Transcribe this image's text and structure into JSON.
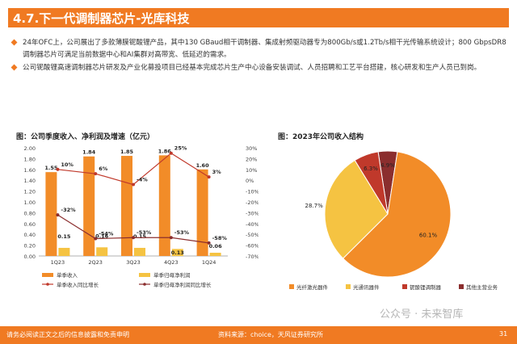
{
  "header": {
    "title": "4.7.下一代调制器芯片-光库科技"
  },
  "bullets": [
    "24年OFC上，公司展出了多款薄膜铌酸锂产品，其中130 GBaud相干调制器、集成射频驱动器专为800Gb/s或1.2Tb/s相干光传输系统设计；800 GbpsDR8调制器芯片可满足当前数据中心和AI集群对高带宽、低延迟的需求。",
    "公司铌酸锂高速调制器芯片研发及产业化募投项目已经基本完成芯片生产中心设备安装调试、人员招聘和工艺平台搭建，核心研发和生产人员已到岗。"
  ],
  "colors": {
    "accent": "#f07a22",
    "bar_revenue": "#f28c28",
    "bar_profit": "#f5c342",
    "line_red": "#c0392b",
    "line_dark": "#8b2e2e"
  },
  "chart_data": [
    {
      "type": "bar",
      "title": "图：公司季度收入、净利润及增速（亿元）",
      "categories": [
        "1Q23",
        "2Q23",
        "3Q23",
        "4Q23",
        "1Q24"
      ],
      "series": [
        {
          "name": "单季收入",
          "kind": "bar",
          "axis": "left",
          "values": [
            1.55,
            1.84,
            1.85,
            1.86,
            1.6
          ],
          "labels": [
            "1.55",
            "1.84",
            "1.85",
            "1.86",
            "1.60"
          ]
        },
        {
          "name": "单季归母净利润",
          "kind": "bar",
          "axis": "left",
          "values": [
            0.15,
            0.16,
            0.15,
            0.13,
            0.06
          ],
          "labels": [
            "0.15",
            "0.16",
            "0.15",
            "0.13",
            "0.06"
          ]
        },
        {
          "name": "单季收入同比增长",
          "kind": "line",
          "axis": "right",
          "values": [
            10,
            6,
            -4,
            25,
            3
          ],
          "labels": [
            "10%",
            "6%",
            "-4%",
            "25%",
            "3%"
          ]
        },
        {
          "name": "单季归母净利润同比增长",
          "kind": "line",
          "axis": "right",
          "values": [
            -32,
            -54,
            -53,
            -53,
            -58
          ],
          "labels": [
            "-32%",
            "-54%",
            "-53%",
            "-53%",
            "-58%"
          ]
        }
      ],
      "y_left": {
        "min": 0,
        "max": 2.0,
        "ticks": [
          "0.00",
          "0.20",
          "0.40",
          "0.60",
          "0.80",
          "1.00",
          "1.20",
          "1.40",
          "1.60",
          "1.80",
          "2.00"
        ]
      },
      "y_right": {
        "min": -70,
        "max": 30,
        "ticks": [
          "-70%",
          "-60%",
          "-50%",
          "-40%",
          "-30%",
          "-20%",
          "-10%",
          "0%",
          "10%",
          "20%",
          "30%"
        ]
      },
      "legend": "bottom"
    },
    {
      "type": "pie",
      "title": "图：2023年公司收入结构",
      "slices": [
        {
          "name": "光纤激光器件",
          "value": 60.1,
          "label": "60.1%",
          "color": "#f28c28"
        },
        {
          "name": "光通讯器件",
          "value": 28.7,
          "label": "28.7%",
          "color": "#f5c342"
        },
        {
          "name": "铌酸锂调制器",
          "value": 6.3,
          "label": "6.3%",
          "color": "#c0392b"
        },
        {
          "name": "其他主营业务",
          "value": 4.9,
          "label": "4.9%",
          "color": "#8b2e2e"
        }
      ],
      "legend": "bottom"
    }
  ],
  "footer": {
    "disclaimer": "请务必阅读正文之后的信息披露和免责申明",
    "source": "资料来源：choice，天风证券研究所",
    "page": "31"
  },
  "watermark": "公众号 · 未来智库"
}
